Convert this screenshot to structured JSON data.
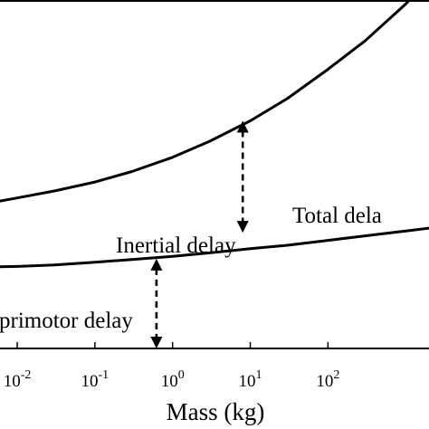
{
  "chart_data": {
    "type": "line",
    "xscale": "log",
    "xlim": [
      0.006,
      2000
    ],
    "ylim": [
      0,
      1
    ],
    "grid": false,
    "xlabel": "Mass (kg)",
    "ylabel": "",
    "title": "",
    "x_ticks": [
      {
        "value": 0.01,
        "base": "10",
        "exp": "-2"
      },
      {
        "value": 0.1,
        "base": "10",
        "exp": "-1"
      },
      {
        "value": 1,
        "base": "10",
        "exp": "0"
      },
      {
        "value": 10,
        "base": "10",
        "exp": "1"
      },
      {
        "value": 100,
        "base": "10",
        "exp": "2"
      }
    ],
    "series": [
      {
        "name": "Total delay",
        "x": [
          0.006,
          0.01,
          0.03,
          0.1,
          0.3,
          1,
          3,
          10,
          30,
          100,
          300,
          1000,
          2000
        ],
        "y": [
          0.424,
          0.433,
          0.453,
          0.479,
          0.509,
          0.55,
          0.596,
          0.655,
          0.719,
          0.803,
          0.885,
          0.991,
          1.06
        ]
      },
      {
        "name": "Neuromotor delay",
        "x": [
          0.006,
          0.01,
          0.03,
          0.1,
          0.3,
          1,
          3,
          10,
          30,
          100,
          300,
          1000,
          2000
        ],
        "y": [
          0.235,
          0.236,
          0.24,
          0.248,
          0.256,
          0.265,
          0.275,
          0.287,
          0.297,
          0.311,
          0.324,
          0.338,
          0.346
        ]
      }
    ],
    "annotations": [
      {
        "text": "Total dela",
        "kind": "label"
      },
      {
        "text": "Inertial delay",
        "kind": "label"
      },
      {
        "text": "primotor delay",
        "kind": "label"
      },
      {
        "kind": "double-arrow",
        "x": 8,
        "y_from": 0.333,
        "y_to": 0.655
      },
      {
        "kind": "double-arrow",
        "x": 0.62,
        "y_from": 0.0,
        "y_to": 0.258
      }
    ]
  }
}
